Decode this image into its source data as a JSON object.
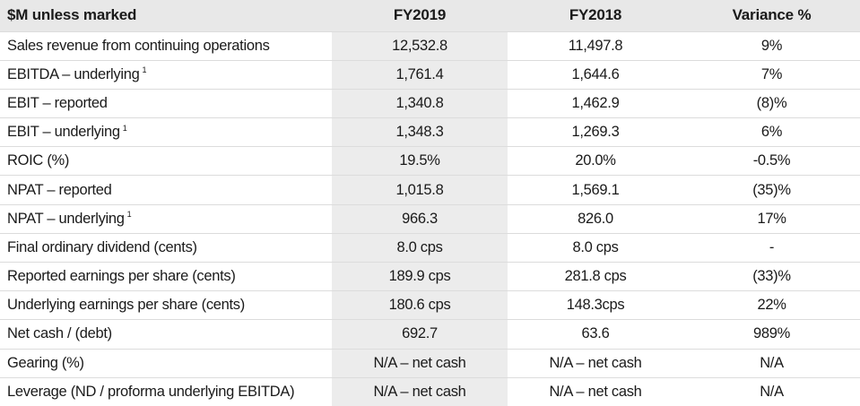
{
  "header": {
    "label": "$M unless marked",
    "col1": "FY2019",
    "col2": "FY2018",
    "col3": "Variance %"
  },
  "rows": [
    {
      "label": "Sales revenue from continuing operations",
      "note": "",
      "fy2019": "12,532.8",
      "fy2018": "11,497.8",
      "variance": "9%"
    },
    {
      "label": "EBITDA – underlying",
      "note": "1",
      "fy2019": "1,761.4",
      "fy2018": "1,644.6",
      "variance": "7%"
    },
    {
      "label": "EBIT – reported",
      "note": "",
      "fy2019": "1,340.8",
      "fy2018": "1,462.9",
      "variance": "(8)%"
    },
    {
      "label": "EBIT – underlying",
      "note": "1",
      "fy2019": "1,348.3",
      "fy2018": "1,269.3",
      "variance": "6%"
    },
    {
      "label": "ROIC (%)",
      "note": "",
      "fy2019": "19.5%",
      "fy2018": "20.0%",
      "variance": "-0.5%"
    },
    {
      "label": "NPAT – reported",
      "note": "",
      "fy2019": "1,015.8",
      "fy2018": "1,569.1",
      "variance": "(35)%"
    },
    {
      "label": "NPAT – underlying",
      "note": "1",
      "fy2019": "966.3",
      "fy2018": "826.0",
      "variance": "17%"
    },
    {
      "label": "Final ordinary dividend (cents)",
      "note": "",
      "fy2019": "8.0 cps",
      "fy2018": "8.0 cps",
      "variance": "-"
    },
    {
      "label": "Reported earnings per share (cents)",
      "note": "",
      "fy2019": "189.9 cps",
      "fy2018": "281.8 cps",
      "variance": "(33)%"
    },
    {
      "label": "Underlying earnings per share (cents)",
      "note": "",
      "fy2019": "180.6 cps",
      "fy2018": "148.3cps",
      "variance": "22%"
    },
    {
      "label": "Net cash / (debt)",
      "note": "",
      "fy2019": "692.7",
      "fy2018": "63.6",
      "variance": "989%"
    },
    {
      "label": "Gearing (%)",
      "note": "",
      "fy2019": "N/A – net cash",
      "fy2018": "N/A – net cash",
      "variance": "N/A"
    },
    {
      "label": "Leverage (ND / proforma underlying EBITDA)",
      "note": "",
      "fy2019": "N/A – net cash",
      "fy2018": "N/A – net cash",
      "variance": "N/A"
    }
  ]
}
